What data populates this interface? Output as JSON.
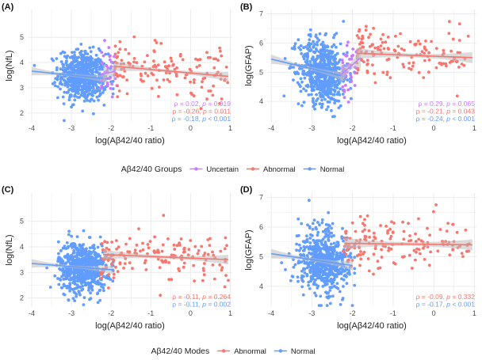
{
  "colors": {
    "uncertain": "#c77cff",
    "abnormal": "#f8766d",
    "normal": "#619cff",
    "grid": "#ebebeb",
    "ci": "#bdbdbd"
  },
  "legend_groups": {
    "title": "Aβ42/40 Groups",
    "items": [
      {
        "label": "Uncertain",
        "color": "#c77cff"
      },
      {
        "label": "Abnormal",
        "color": "#f8766d"
      },
      {
        "label": "Normal",
        "color": "#619cff"
      }
    ]
  },
  "legend_modes": {
    "title": "Aβ42/40 Modes",
    "items": [
      {
        "label": "Abnormal",
        "color": "#f8766d"
      },
      {
        "label": "Normal",
        "color": "#619cff"
      }
    ]
  },
  "chart_data": [
    {
      "panel": "(A)",
      "type": "scatter",
      "xlabel": "log(Aβ42/40 ratio)",
      "ylabel": "log(NfL)",
      "xlim": [
        -4.1,
        1.05
      ],
      "ylim": [
        1.65,
        6.1
      ],
      "xticks": [
        -4,
        -3,
        -2,
        -1,
        0,
        1
      ],
      "yticks": [
        2,
        3,
        4,
        5
      ],
      "groups": [
        {
          "name": "Normal",
          "color": "#619cff",
          "n": 620,
          "x_range": [
            -3.95,
            -1.95
          ],
          "x_center": -2.72,
          "x_sd": 0.3,
          "y_at_x": [
            [
              -4.0,
              3.66
            ],
            [
              -2.1,
              3.35
            ]
          ],
          "y_sd": 0.5,
          "rho": "-0.18",
          "p": "< 0.001"
        },
        {
          "name": "Uncertain",
          "color": "#c77cff",
          "n": 40,
          "x_range": [
            -2.25,
            -1.85
          ],
          "y_at_x": [
            [
              -2.2,
              3.55
            ],
            [
              -1.9,
              3.65
            ]
          ],
          "y_sd": 0.45,
          "rho": "0.02",
          "p": "= 0.919"
        },
        {
          "name": "Abnormal",
          "color": "#f8766d",
          "n": 140,
          "x_range": [
            -1.9,
            0.95
          ],
          "y_at_x": [
            [
              -1.9,
              3.85
            ],
            [
              0.95,
              3.45
            ]
          ],
          "y_sd": 0.5,
          "rho": "-0.26",
          "p": "= 0.011"
        }
      ]
    },
    {
      "panel": "(B)",
      "type": "scatter",
      "xlabel": "log(Aβ42/40 ratio)",
      "ylabel": "log(GFAP)",
      "xlim": [
        -4.1,
        1.05
      ],
      "ylim": [
        3.3,
        7.15
      ],
      "xticks": [
        -4,
        -3,
        -2,
        -1,
        0,
        1
      ],
      "yticks": [
        4,
        5,
        6,
        7
      ],
      "groups": [
        {
          "name": "Normal",
          "color": "#619cff",
          "n": 620,
          "x_range": [
            -3.95,
            -1.95
          ],
          "x_center": -2.72,
          "x_sd": 0.3,
          "y_at_x": [
            [
              -4.0,
              5.45
            ],
            [
              -2.2,
              4.85
            ]
          ],
          "y_sd": 0.55,
          "rho": "-0.24",
          "p": "< 0.001"
        },
        {
          "name": "Uncertain",
          "color": "#c77cff",
          "n": 40,
          "x_range": [
            -2.25,
            -1.85
          ],
          "y_at_x": [
            [
              -2.3,
              4.9
            ],
            [
              -1.8,
              5.5
            ]
          ],
          "y_sd": 0.45,
          "rho": "0.29",
          "p": "= 0.065"
        },
        {
          "name": "Abnormal",
          "color": "#f8766d",
          "n": 140,
          "x_range": [
            -1.9,
            0.95
          ],
          "y_at_x": [
            [
              -1.9,
              5.65
            ],
            [
              0.95,
              5.5
            ]
          ],
          "y_sd": 0.45,
          "rho": "-0.21",
          "p": "= 0.043"
        }
      ]
    },
    {
      "panel": "(C)",
      "type": "scatter",
      "xlabel": "log(Aβ42/40 ratio)",
      "ylabel": "log(NfL)",
      "xlim": [
        -4.1,
        1.05
      ],
      "ylim": [
        1.65,
        6.1
      ],
      "xticks": [
        -4,
        -3,
        -2,
        -1,
        0,
        1
      ],
      "yticks": [
        2,
        3,
        4,
        5
      ],
      "groups": [
        {
          "name": "Normal",
          "color": "#619cff",
          "n": 640,
          "x_range": [
            -3.95,
            -1.95
          ],
          "x_center": -2.72,
          "x_sd": 0.3,
          "y_at_x": [
            [
              -4.0,
              3.35
            ],
            [
              -1.95,
              3.1
            ]
          ],
          "y_sd": 0.5,
          "rho": "-0.11",
          "p": "= 0.002"
        },
        {
          "name": "Abnormal",
          "color": "#f8766d",
          "n": 150,
          "x_range": [
            -2.25,
            0.95
          ],
          "y_at_x": [
            [
              -2.2,
              3.7
            ],
            [
              0.95,
              3.5
            ]
          ],
          "y_sd": 0.5,
          "rho": "-0.11",
          "p": "= 0.264"
        }
      ]
    },
    {
      "panel": "(D)",
      "type": "scatter",
      "xlabel": "log(Aβ42/40 ratio)",
      "ylabel": "log(GFAP)",
      "xlim": [
        -4.1,
        1.05
      ],
      "ylim": [
        3.3,
        7.15
      ],
      "xticks": [
        -4,
        -3,
        -2,
        -1,
        0,
        1
      ],
      "yticks": [
        4,
        5,
        6,
        7
      ],
      "groups": [
        {
          "name": "Normal",
          "color": "#619cff",
          "n": 640,
          "x_range": [
            -3.95,
            -1.95
          ],
          "x_center": -2.72,
          "x_sd": 0.3,
          "y_at_x": [
            [
              -4.0,
              5.1
            ],
            [
              -2.0,
              4.7
            ]
          ],
          "y_sd": 0.55,
          "rho": "-0.17",
          "p": "< 0.001"
        },
        {
          "name": "Abnormal",
          "color": "#f8766d",
          "n": 150,
          "x_range": [
            -2.25,
            0.95
          ],
          "y_at_x": [
            [
              -2.2,
              5.45
            ],
            [
              0.95,
              5.4
            ]
          ],
          "y_sd": 0.45,
          "rho": "-0.09",
          "p": "= 0.332"
        }
      ]
    }
  ]
}
